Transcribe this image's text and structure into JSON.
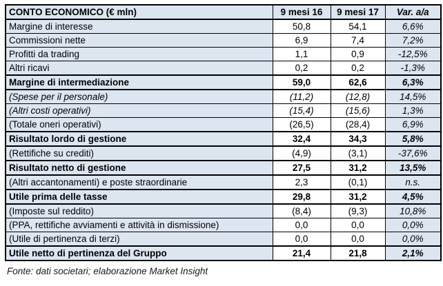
{
  "table": {
    "header": {
      "label": "CONTO ECONOMICO (€ mln)",
      "col_2016": "9 mesi 16",
      "col_2017": "9 mesi 17",
      "col_var": "Var. a/a"
    },
    "rows": [
      {
        "label": "Margine di interesse",
        "y16": "50,8",
        "y17": "54,1",
        "var": "6,6%"
      },
      {
        "label": "Commissioni nette",
        "y16": "6,9",
        "y17": "7,4",
        "var": "7,2%"
      },
      {
        "label": "Profitti da trading",
        "y16": "1,1",
        "y17": "0,9",
        "var": "-12,5%"
      },
      {
        "label": "Altri ricavi",
        "y16": "0,2",
        "y17": "0,2",
        "var": "-1,3%"
      },
      {
        "label": "Margine di intermediazione",
        "y16": "59,0",
        "y17": "62,6",
        "var": "6,3%"
      },
      {
        "label": "(Spese per il personale)",
        "y16": "(11,2)",
        "y17": "(12,8)",
        "var": "14,5%"
      },
      {
        "label": "(Altri costi operativi)",
        "y16": "(15,4)",
        "y17": "(15,6)",
        "var": "1,3%"
      },
      {
        "label": "(Totale oneri operativi)",
        "y16": "(26,5)",
        "y17": "(28,4)",
        "var": "6,9%"
      },
      {
        "label": "Risultato lordo di gestione",
        "y16": "32,4",
        "y17": "34,3",
        "var": "5,8%"
      },
      {
        "label": "(Rettifiche su crediti)",
        "y16": "(4,9)",
        "y17": "(3,1)",
        "var": "-37,6%"
      },
      {
        "label": "Risultato netto di gestione",
        "y16": "27,5",
        "y17": "31,2",
        "var": "13,5%"
      },
      {
        "label": "(Altri accantonamenti) e poste straordinarie",
        "y16": "2,3",
        "y17": "(0,1)",
        "var": "n.s."
      },
      {
        "label": "Utile prima delle tasse",
        "y16": "29,8",
        "y17": "31,2",
        "var": "4,5%"
      },
      {
        "label": "(Imposte sul reddito)",
        "y16": "(8,4)",
        "y17": "(9,3)",
        "var": "10,8%"
      },
      {
        "label": "(PPA, rettifiche avviamenti e attività in dismissione)",
        "y16": "0,0",
        "y17": "0,0",
        "var": "0,0%"
      },
      {
        "label": "(Utile di pertinenza di terzi)",
        "y16": "0,0",
        "y17": "0,0",
        "var": "0,0%"
      },
      {
        "label": "Utile netto di pertinenza del Gruppo",
        "y16": "21,4",
        "y17": "21,8",
        "var": "2,1%"
      }
    ]
  },
  "footer": {
    "source_note": "Fonte: dati societari; elaborazione Market Insight"
  },
  "colors": {
    "highlight_bg": "#dce6f1",
    "numeric_bg": "#ffffff",
    "border": "#000000",
    "text": "#000000"
  }
}
